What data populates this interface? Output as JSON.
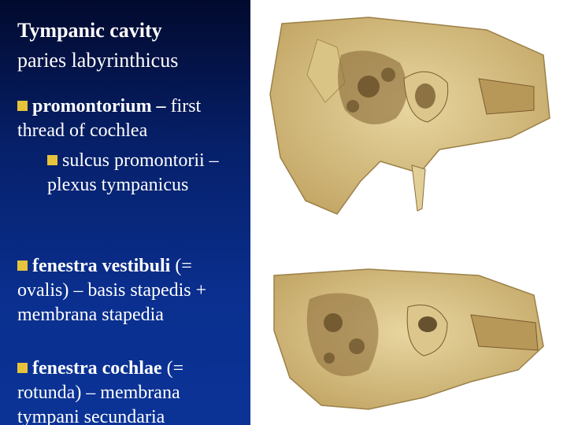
{
  "title": "Tympanic cavity",
  "subtitle": "paries labyrinthicus",
  "bullets": [
    {
      "term": "promontorium –",
      "text": "first thread of cochlea",
      "sub": [
        "sulcus promontorii – plexus tympanicus"
      ]
    },
    {
      "term": "fenestra vestibuli",
      "text": "(= ovalis) – basis stapedis + membrana stapedia"
    },
    {
      "term": "fenestra cochlae",
      "text": "(= rotunda) – membrana tympani secundaria"
    }
  ]
}
